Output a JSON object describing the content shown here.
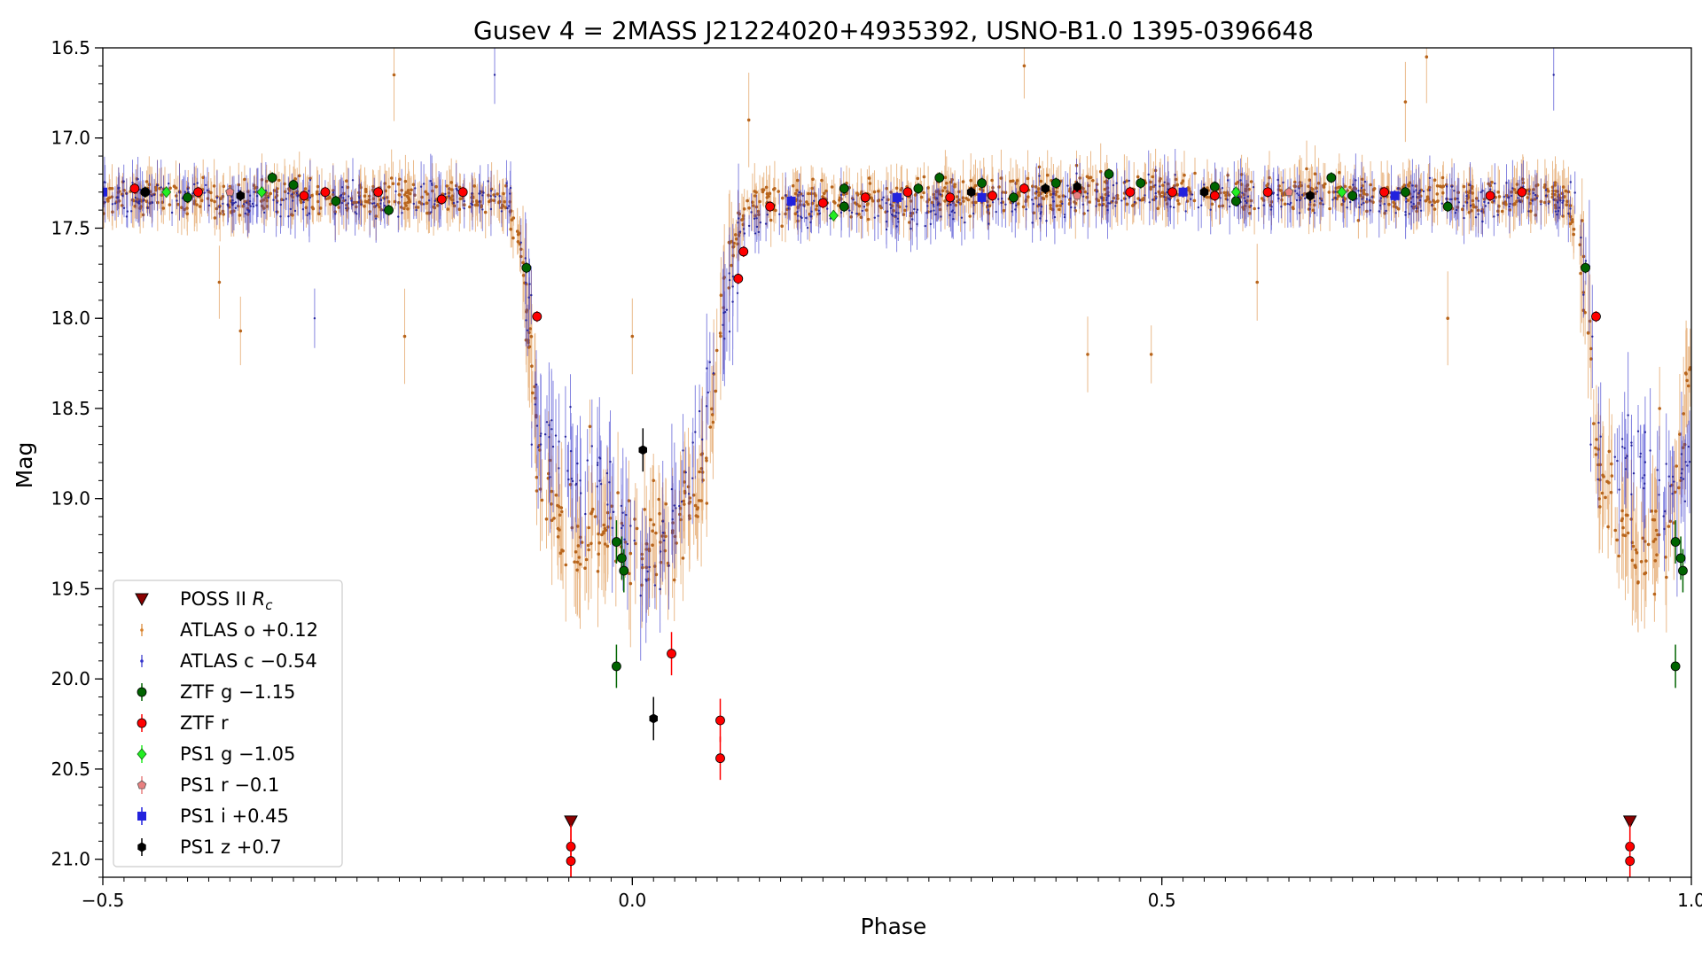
{
  "chart_data": {
    "type": "scatter",
    "title": "Gusev 4 = 2MASS J21224020+4935392, USNO-B1.0 1395-0396648",
    "xlabel": "Phase",
    "ylabel": "Mag",
    "xlim": [
      -0.5,
      1.0
    ],
    "ylim": [
      21.1,
      16.5
    ],
    "y_inverted": true,
    "x_ticks": [
      -0.5,
      0.0,
      0.5,
      1.0
    ],
    "x_tick_labels": [
      "−0.5",
      "0.0",
      "0.5",
      "1.0"
    ],
    "y_ticks": [
      16.5,
      17.0,
      17.5,
      18.0,
      18.5,
      19.0,
      19.5,
      20.0,
      20.5,
      21.0
    ],
    "y_tick_labels": [
      "16.5",
      "17.0",
      "17.5",
      "18.0",
      "18.5",
      "19.0",
      "19.5",
      "20.0",
      "20.5",
      "21.0"
    ],
    "grid": false,
    "legend_position": "lower-left",
    "series": [
      {
        "name": "POSS II R_c",
        "label_main": "POSS II ",
        "label_italic": "R",
        "label_sub": "c",
        "marker": "triangle-down",
        "color": "#8b0000",
        "points": [
          [
            -0.058,
            20.79
          ],
          [
            0.942,
            20.79
          ]
        ]
      },
      {
        "name": "ATLAS o +0.12",
        "marker": "dot-errorbar",
        "color": "#d9822b",
        "envelope": [
          [
            -0.5,
            17.33
          ],
          [
            -0.12,
            17.33
          ],
          [
            -0.105,
            17.6
          ],
          [
            -0.095,
            18.2
          ],
          [
            -0.088,
            18.9
          ],
          [
            -0.05,
            19.3
          ],
          [
            -0.02,
            19.2
          ],
          [
            0.0,
            19.3
          ],
          [
            0.03,
            19.25
          ],
          [
            0.06,
            19.0
          ],
          [
            0.075,
            18.6
          ],
          [
            0.085,
            18.0
          ],
          [
            0.095,
            17.6
          ],
          [
            0.11,
            17.35
          ],
          [
            0.5,
            17.3
          ],
          [
            0.88,
            17.33
          ],
          [
            0.895,
            17.6
          ],
          [
            0.905,
            18.2
          ],
          [
            0.912,
            18.9
          ],
          [
            0.95,
            19.3
          ],
          [
            0.98,
            19.2
          ],
          [
            1.0,
            18.2
          ]
        ],
        "outliers": [
          [
            -0.37,
            18.07
          ],
          [
            -0.39,
            17.8
          ],
          [
            -0.225,
            16.65
          ],
          [
            -0.215,
            18.1
          ],
          [
            -0.04,
            18.6
          ],
          [
            -0.035,
            19.1
          ],
          [
            0.0,
            18.1
          ],
          [
            0.02,
            18.9
          ],
          [
            0.11,
            16.9
          ],
          [
            0.37,
            16.6
          ],
          [
            0.43,
            18.2
          ],
          [
            0.49,
            18.2
          ],
          [
            0.59,
            17.8
          ],
          [
            0.73,
            16.8
          ],
          [
            0.75,
            16.55
          ],
          [
            0.77,
            18.0
          ],
          [
            0.97,
            18.5
          ],
          [
            0.99,
            18.9
          ]
        ]
      },
      {
        "name": "ATLAS c −0.54",
        "marker": "dot-errorbar",
        "color": "#3333cc",
        "envelope": [
          [
            -0.5,
            17.33
          ],
          [
            -0.11,
            17.35
          ],
          [
            -0.095,
            18.0
          ],
          [
            -0.09,
            18.6
          ],
          [
            -0.02,
            19.0
          ],
          [
            0.0,
            19.3
          ],
          [
            0.025,
            19.4
          ],
          [
            0.09,
            18.0
          ],
          [
            0.105,
            17.45
          ],
          [
            0.5,
            17.33
          ],
          [
            0.89,
            17.35
          ],
          [
            0.905,
            18.0
          ],
          [
            0.91,
            18.6
          ],
          [
            0.98,
            19.0
          ],
          [
            1.0,
            18.8
          ]
        ],
        "outliers": [
          [
            -0.13,
            16.65
          ],
          [
            -0.3,
            18.0
          ],
          [
            -0.095,
            18.7
          ],
          [
            0.87,
            16.65
          ],
          [
            0.905,
            18.7
          ]
        ]
      },
      {
        "name": "ZTF g −1.15",
        "marker": "circle",
        "color": "#006400",
        "points": [
          [
            -0.46,
            17.3
          ],
          [
            -0.42,
            17.33
          ],
          [
            -0.34,
            17.22
          ],
          [
            -0.32,
            17.26
          ],
          [
            -0.28,
            17.35
          ],
          [
            -0.23,
            17.4
          ],
          [
            -0.1,
            17.72
          ],
          [
            -0.015,
            19.24
          ],
          [
            -0.01,
            19.33
          ],
          [
            -0.008,
            19.4
          ],
          [
            -0.015,
            19.93
          ],
          [
            0.2,
            17.28
          ],
          [
            0.2,
            17.38
          ],
          [
            0.27,
            17.28
          ],
          [
            0.29,
            17.22
          ],
          [
            0.33,
            17.25
          ],
          [
            0.36,
            17.33
          ],
          [
            0.4,
            17.25
          ],
          [
            0.45,
            17.2
          ],
          [
            0.48,
            17.25
          ],
          [
            0.55,
            17.27
          ],
          [
            0.57,
            17.35
          ],
          [
            0.66,
            17.22
          ],
          [
            0.68,
            17.32
          ],
          [
            0.73,
            17.3
          ],
          [
            0.77,
            17.38
          ],
          [
            0.9,
            17.72
          ],
          [
            0.985,
            19.24
          ],
          [
            0.99,
            19.33
          ],
          [
            0.992,
            19.4
          ],
          [
            0.985,
            19.93
          ]
        ]
      },
      {
        "name": "ZTF r",
        "marker": "circle",
        "color": "#ff0000",
        "points": [
          [
            -0.47,
            17.28
          ],
          [
            -0.41,
            17.3
          ],
          [
            -0.31,
            17.32
          ],
          [
            -0.29,
            17.3
          ],
          [
            -0.24,
            17.3
          ],
          [
            -0.18,
            17.34
          ],
          [
            -0.16,
            17.3
          ],
          [
            -0.09,
            17.99
          ],
          [
            -0.058,
            20.93
          ],
          [
            -0.058,
            21.01
          ],
          [
            0.037,
            19.86
          ],
          [
            0.083,
            20.23
          ],
          [
            0.083,
            20.44
          ],
          [
            0.1,
            17.78
          ],
          [
            0.105,
            17.63
          ],
          [
            0.13,
            17.38
          ],
          [
            0.18,
            17.36
          ],
          [
            0.22,
            17.33
          ],
          [
            0.26,
            17.3
          ],
          [
            0.3,
            17.33
          ],
          [
            0.34,
            17.32
          ],
          [
            0.37,
            17.28
          ],
          [
            0.42,
            17.3
          ],
          [
            0.47,
            17.3
          ],
          [
            0.51,
            17.3
          ],
          [
            0.55,
            17.32
          ],
          [
            0.6,
            17.3
          ],
          [
            0.71,
            17.3
          ],
          [
            0.81,
            17.32
          ],
          [
            0.84,
            17.3
          ],
          [
            0.91,
            17.99
          ],
          [
            0.942,
            20.93
          ],
          [
            0.942,
            21.01
          ]
        ]
      },
      {
        "name": "PS1 g −1.05",
        "marker": "diamond",
        "color": "#22ee22",
        "points": [
          [
            -0.44,
            17.3
          ],
          [
            -0.35,
            17.3
          ],
          [
            0.19,
            17.43
          ],
          [
            0.57,
            17.3
          ],
          [
            0.67,
            17.3
          ]
        ]
      },
      {
        "name": "PS1 r −0.1",
        "marker": "pentagon",
        "color": "#e88080",
        "points": [
          [
            -0.38,
            17.3
          ],
          [
            0.42,
            17.32
          ],
          [
            0.62,
            17.3
          ]
        ]
      },
      {
        "name": "PS1 i +0.45",
        "marker": "square",
        "color": "#2222dd",
        "points": [
          [
            -0.5,
            17.3
          ],
          [
            0.15,
            17.35
          ],
          [
            0.25,
            17.33
          ],
          [
            0.33,
            17.33
          ],
          [
            0.52,
            17.3
          ],
          [
            0.72,
            17.32
          ]
        ]
      },
      {
        "name": "PS1 z +0.7",
        "marker": "hexagon",
        "color": "#000000",
        "points": [
          [
            -0.46,
            17.3
          ],
          [
            -0.37,
            17.32
          ],
          [
            0.01,
            18.73
          ],
          [
            0.02,
            20.22
          ],
          [
            0.32,
            17.3
          ],
          [
            0.39,
            17.28
          ],
          [
            0.42,
            17.27
          ],
          [
            0.54,
            17.3
          ],
          [
            0.64,
            17.32
          ]
        ]
      }
    ]
  }
}
